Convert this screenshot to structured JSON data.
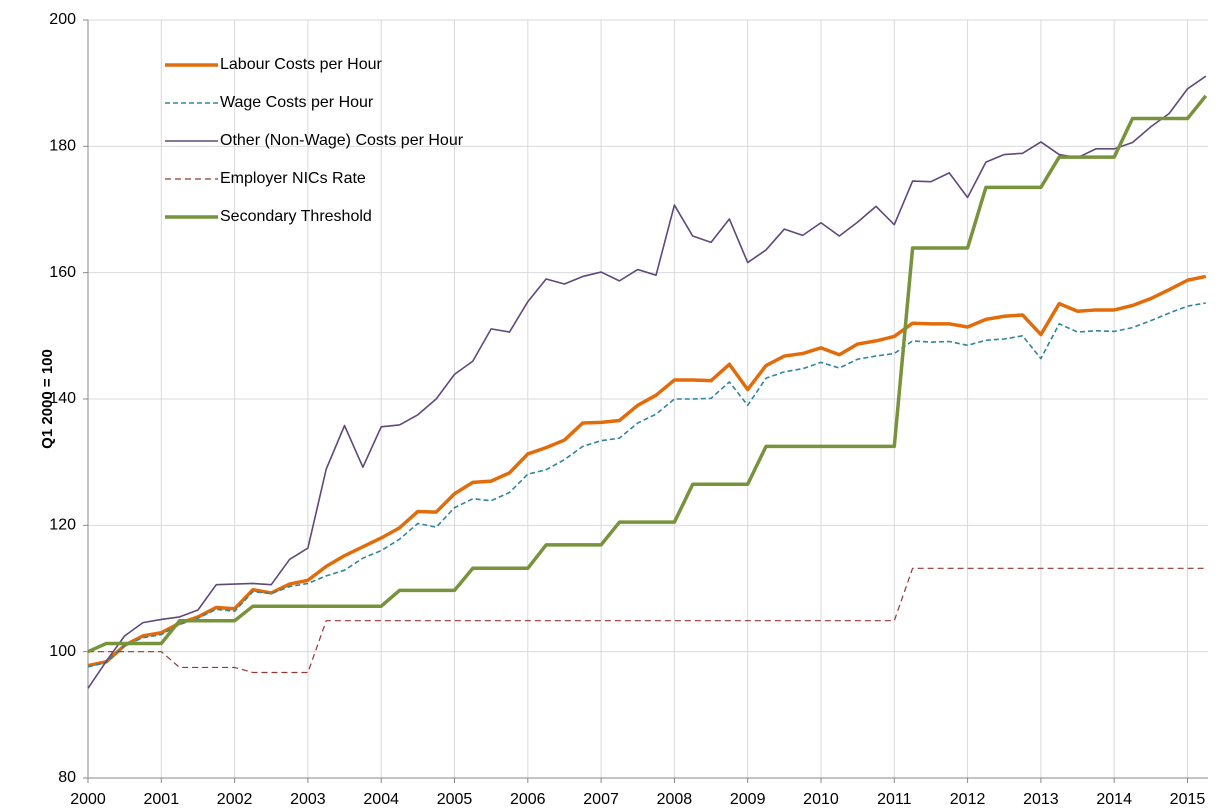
{
  "chart_data": {
    "type": "line",
    "ylabel": "Q1 2000 = 100",
    "x": [
      2000,
      2000.25,
      2000.5,
      2000.75,
      2001,
      2001.25,
      2001.5,
      2001.75,
      2002,
      2002.25,
      2002.5,
      2002.75,
      2003,
      2003.25,
      2003.5,
      2003.75,
      2004,
      2004.25,
      2004.5,
      2004.75,
      2005,
      2005.25,
      2005.5,
      2005.75,
      2006,
      2006.25,
      2006.5,
      2006.75,
      2007,
      2007.25,
      2007.5,
      2007.75,
      2008,
      2008.25,
      2008.5,
      2008.75,
      2009,
      2009.25,
      2009.5,
      2009.75,
      2010,
      2010.25,
      2010.5,
      2010.75,
      2011,
      2011.25,
      2011.5,
      2011.75,
      2012,
      2012.25,
      2012.5,
      2012.75,
      2013,
      2013.25,
      2013.5,
      2013.75,
      2014,
      2014.25,
      2014.5,
      2014.75,
      2015,
      2015.25
    ],
    "xlim": [
      2000,
      2015.28
    ],
    "xticks": [
      2000,
      2001,
      2002,
      2003,
      2004,
      2005,
      2006,
      2007,
      2008,
      2009,
      2010,
      2011,
      2012,
      2013,
      2014,
      2015
    ],
    "ylim": [
      80,
      200
    ],
    "yticks": [
      80,
      100,
      120,
      140,
      160,
      180,
      200
    ],
    "grid": true,
    "legend": "upper-left",
    "series": [
      {
        "name": "Labour Costs per Hour",
        "color": "#e36c0a",
        "width": 3.5,
        "dash": "solid",
        "values": [
          97.8,
          98.4,
          101.0,
          102.5,
          103.0,
          104.5,
          105.5,
          107.0,
          106.8,
          109.8,
          109.3,
          110.7,
          111.3,
          113.5,
          115.2,
          116.6,
          118.0,
          119.6,
          122.2,
          122.1,
          125.0,
          126.8,
          127.0,
          128.3,
          131.3,
          132.3,
          133.5,
          136.2,
          136.3,
          136.6,
          139.0,
          140.6,
          143.0,
          143.0,
          142.9,
          145.5,
          141.5,
          145.3,
          146.8,
          147.2,
          148.1,
          147.0,
          148.7,
          149.2,
          149.9,
          152.0,
          151.9,
          151.9,
          151.4,
          152.6,
          153.1,
          153.3,
          150.2,
          155.1,
          153.9,
          154.1,
          154.1,
          154.8,
          155.9,
          157.3,
          158.8,
          159.4
        ]
      },
      {
        "name": "Wage Costs per Hour",
        "color": "#31859c",
        "width": 1.6,
        "dash": "dashed",
        "values": [
          97.6,
          98.3,
          101.0,
          102.2,
          102.7,
          104.3,
          105.3,
          106.7,
          106.4,
          109.5,
          109.2,
          110.3,
          110.8,
          112.0,
          112.9,
          114.8,
          116.0,
          117.8,
          120.3,
          119.7,
          122.8,
          124.2,
          123.9,
          125.2,
          128.1,
          128.8,
          130.4,
          132.5,
          133.4,
          133.8,
          136.2,
          137.6,
          140.0,
          140.0,
          140.1,
          142.7,
          139.0,
          143.3,
          144.3,
          144.8,
          145.8,
          144.9,
          146.3,
          146.8,
          147.2,
          149.2,
          149.0,
          149.1,
          148.5,
          149.3,
          149.5,
          150.0,
          146.4,
          151.9,
          150.6,
          150.8,
          150.7,
          151.3,
          152.4,
          153.6,
          154.7,
          155.2
        ]
      },
      {
        "name": "Other (Non-Wage) Costs per Hour",
        "color": "#5f497a",
        "width": 1.6,
        "dash": "solid",
        "values": [
          94.2,
          98.5,
          102.5,
          104.6,
          105.1,
          105.5,
          106.6,
          110.6,
          110.7,
          110.8,
          110.6,
          114.6,
          116.4,
          128.9,
          135.8,
          129.2,
          135.6,
          135.9,
          137.5,
          140.0,
          143.9,
          146.0,
          151.1,
          150.6,
          155.4,
          159.0,
          158.2,
          159.4,
          160.1,
          158.7,
          160.5,
          159.6,
          170.7,
          165.8,
          164.8,
          168.5,
          161.6,
          163.6,
          166.9,
          165.9,
          167.9,
          165.8,
          168.0,
          170.5,
          167.6,
          174.5,
          174.4,
          175.8,
          171.9,
          177.5,
          178.7,
          178.9,
          180.7,
          178.7,
          178.2,
          179.6,
          179.6,
          180.6,
          183.1,
          185.2,
          189.1,
          191.1
        ]
      },
      {
        "name": "Employer NICs Rate",
        "color": "#953735",
        "width": 1.2,
        "dash": "dashed",
        "values": [
          100,
          100,
          100,
          100,
          100,
          97.5,
          97.5,
          97.5,
          97.5,
          96.7,
          96.7,
          96.7,
          96.7,
          104.9,
          104.9,
          104.9,
          104.9,
          104.9,
          104.9,
          104.9,
          104.9,
          104.9,
          104.9,
          104.9,
          104.9,
          104.9,
          104.9,
          104.9,
          104.9,
          104.9,
          104.9,
          104.9,
          104.9,
          104.9,
          104.9,
          104.9,
          104.9,
          104.9,
          104.9,
          104.9,
          104.9,
          104.9,
          104.9,
          104.9,
          104.9,
          113.2,
          113.2,
          113.2,
          113.2,
          113.2,
          113.2,
          113.2,
          113.2,
          113.2,
          113.2,
          113.2,
          113.2,
          113.2,
          113.2,
          113.2,
          113.2,
          113.2
        ]
      },
      {
        "name": "Secondary Threshold",
        "color": "#77933c",
        "width": 3.5,
        "dash": "solid",
        "values": [
          100,
          101.3,
          101.3,
          101.3,
          101.3,
          104.9,
          104.9,
          104.9,
          104.9,
          107.2,
          107.2,
          107.2,
          107.2,
          107.2,
          107.2,
          107.2,
          107.2,
          109.7,
          109.7,
          109.7,
          109.7,
          113.2,
          113.2,
          113.2,
          113.2,
          116.9,
          116.9,
          116.9,
          116.9,
          120.5,
          120.5,
          120.5,
          120.5,
          126.5,
          126.5,
          126.5,
          126.5,
          132.5,
          132.5,
          132.5,
          132.5,
          132.5,
          132.5,
          132.5,
          132.5,
          163.9,
          163.9,
          163.9,
          163.9,
          173.5,
          173.5,
          173.5,
          173.5,
          178.3,
          178.3,
          178.3,
          178.3,
          184.4,
          184.4,
          184.4,
          184.4,
          188.0
        ]
      }
    ]
  }
}
